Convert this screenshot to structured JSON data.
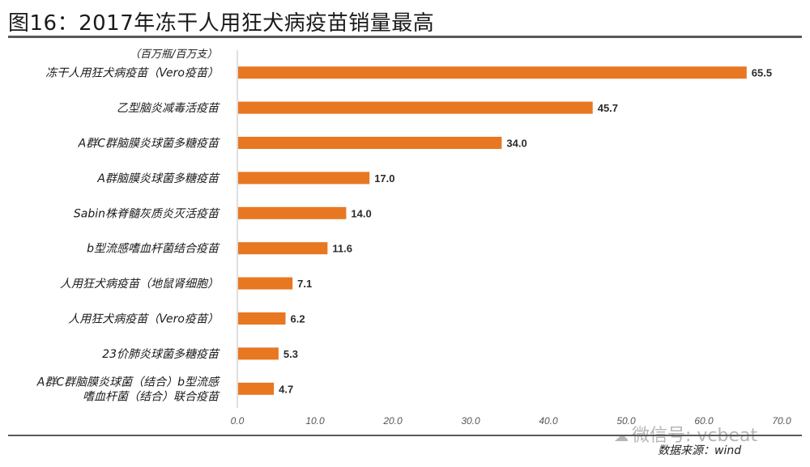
{
  "header": {
    "title": "图16：2017年冻干人用狂犬病疫苗销量最高"
  },
  "footer": {
    "source": "数据来源：wind",
    "watermark": "微信号: vcbeat"
  },
  "colors": {
    "bar": "#E87722",
    "axis": "#BFBFBF",
    "rule": "#595959"
  },
  "chart_data": {
    "type": "bar",
    "orientation": "horizontal",
    "title": "图16：2017年冻干人用狂犬病疫苗销量最高",
    "unit_label": "（百万瓶/百万支）",
    "categories": [
      [
        "冻干人用狂犬病疫苗（Vero疫苗）"
      ],
      [
        "乙型脑炎减毒活疫苗"
      ],
      [
        "A群C群脑膜炎球菌多糖疫苗"
      ],
      [
        "A群脑膜炎球菌多糖疫苗"
      ],
      [
        "Sabin株脊髓灰质炎灭活疫苗"
      ],
      [
        "b型流感嗜血杆菌结合疫苗"
      ],
      [
        "人用狂犬病疫苗（地鼠肾细胞）"
      ],
      [
        "人用狂犬病疫苗（Vero疫苗）"
      ],
      [
        "23价肺炎球菌多糖疫苗"
      ],
      [
        "A群C群脑膜炎球菌（结合）b型流感",
        "嗜血杆菌（结合）联合疫苗"
      ]
    ],
    "values": [
      65.5,
      45.7,
      34.0,
      17.0,
      14.0,
      11.6,
      7.1,
      6.2,
      5.3,
      4.7
    ],
    "value_labels": [
      "65.5",
      "45.7",
      "34.0",
      "17.0",
      "14.0",
      "11.6",
      "7.1",
      "6.2",
      "5.3",
      "4.7"
    ],
    "xlim": [
      0,
      70
    ],
    "xticks": [
      "0.0",
      "10.0",
      "20.0",
      "30.0",
      "40.0",
      "50.0",
      "60.0",
      "70.0"
    ],
    "xlabel": "",
    "ylabel": "",
    "grid": false,
    "legend": "none"
  }
}
